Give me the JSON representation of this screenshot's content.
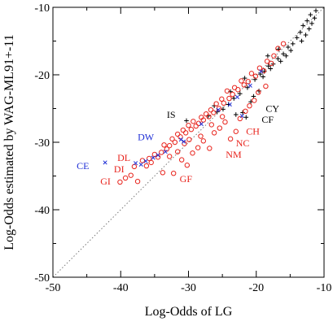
{
  "colors": {
    "black": "#000000",
    "red": "#e8231c",
    "blue": "#1f2fd6",
    "diag": "#7a7a7a"
  },
  "chart_data": {
    "type": "scatter",
    "title": "",
    "xlabel": "Log-Odds of LG",
    "ylabel": "Log-Odds estimated by WAG-ML91+-11",
    "xlim": [
      -50,
      -10
    ],
    "ylim": [
      -50,
      -10
    ],
    "x_ticks": [
      -50,
      -40,
      -30,
      -20,
      -10
    ],
    "y_ticks": [
      -50,
      -40,
      -30,
      -20,
      -10
    ],
    "x_tick_labels": [
      "-50",
      "-40",
      "-30",
      "-20",
      "-10"
    ],
    "y_tick_labels": [
      "-50",
      "-40",
      "-30",
      "-20",
      "-10"
    ],
    "grid": false,
    "legend": "none",
    "reference_line": {
      "style": "dotted",
      "from": [
        -50,
        -50
      ],
      "to": [
        -10,
        -10
      ]
    },
    "series": [
      {
        "marker": "plus",
        "color": "black",
        "points": [
          [
            -11.2,
            -10.5
          ],
          [
            -12.0,
            -11.1
          ],
          [
            -11.4,
            -11.6
          ],
          [
            -12.5,
            -12.0
          ],
          [
            -11.8,
            -12.4
          ],
          [
            -13.1,
            -12.7
          ],
          [
            -12.2,
            -13.2
          ],
          [
            -13.5,
            -13.7
          ],
          [
            -12.7,
            -14.1
          ],
          [
            -14.0,
            -14.5
          ],
          [
            -13.3,
            -15.0
          ],
          [
            -14.6,
            -15.4
          ],
          [
            -15.3,
            -15.9
          ],
          [
            -14.9,
            -16.4
          ],
          [
            -16.0,
            -16.9
          ],
          [
            -15.6,
            -17.2
          ],
          [
            -16.8,
            -17.6
          ],
          [
            -16.4,
            -18.0
          ],
          [
            -17.5,
            -18.4
          ],
          [
            -18.2,
            -18.7
          ],
          [
            -17.9,
            -19.1
          ],
          [
            -18.8,
            -19.5
          ],
          [
            -19.4,
            -19.9
          ],
          [
            -19.0,
            -20.3
          ],
          [
            -20.2,
            -20.7
          ],
          [
            -21.3,
            -21.9
          ],
          [
            -22.4,
            -22.8
          ],
          [
            -23.3,
            -23.5
          ],
          [
            -24.1,
            -24.4
          ],
          [
            -24.9,
            -25.1
          ],
          [
            -22.0,
            -25.6
          ],
          [
            -21.5,
            -26.3
          ],
          [
            -23.0,
            -25.9
          ],
          [
            -25.8,
            -25.5
          ],
          [
            -26.2,
            -24.6
          ],
          [
            -30.3,
            -26.8
          ],
          [
            -27.1,
            -26.1
          ],
          [
            -20.4,
            -23.2
          ],
          [
            -19.6,
            -22.4
          ],
          [
            -20.8,
            -24.0
          ],
          [
            -18.3,
            -17.2
          ],
          [
            -16.7,
            -16.2
          ],
          [
            -21.7,
            -20.5
          ],
          [
            -23.8,
            -22.5
          ]
        ]
      },
      {
        "marker": "circle",
        "color": "red",
        "points": [
          [
            -16.0,
            -15.4
          ],
          [
            -16.8,
            -16.1
          ],
          [
            -17.4,
            -17.2
          ],
          [
            -17.8,
            -18.3
          ],
          [
            -18.4,
            -18.0
          ],
          [
            -18.9,
            -19.4
          ],
          [
            -19.5,
            -19.0
          ],
          [
            -20.1,
            -20.2
          ],
          [
            -20.7,
            -19.8
          ],
          [
            -21.2,
            -21.0
          ],
          [
            -21.8,
            -21.5
          ],
          [
            -22.2,
            -20.9
          ],
          [
            -22.7,
            -22.2
          ],
          [
            -23.2,
            -21.9
          ],
          [
            -23.5,
            -22.9
          ],
          [
            -24.0,
            -23.5
          ],
          [
            -24.3,
            -22.4
          ],
          [
            -24.8,
            -24.2
          ],
          [
            -25.1,
            -23.6
          ],
          [
            -25.5,
            -25.0
          ],
          [
            -25.9,
            -24.3
          ],
          [
            -26.3,
            -25.6
          ],
          [
            -26.7,
            -25.2
          ],
          [
            -27.0,
            -26.2
          ],
          [
            -27.4,
            -25.8
          ],
          [
            -27.8,
            -26.7
          ],
          [
            -28.1,
            -26.3
          ],
          [
            -28.5,
            -27.2
          ],
          [
            -28.9,
            -27.6
          ],
          [
            -29.3,
            -26.9
          ],
          [
            -29.6,
            -28.1
          ],
          [
            -30.0,
            -27.5
          ],
          [
            -30.4,
            -28.6
          ],
          [
            -30.8,
            -28.2
          ],
          [
            -31.2,
            -29.2
          ],
          [
            -31.6,
            -28.8
          ],
          [
            -32.0,
            -30.0
          ],
          [
            -32.4,
            -29.5
          ],
          [
            -32.8,
            -30.5
          ],
          [
            -33.2,
            -31.0
          ],
          [
            -33.6,
            -30.4
          ],
          [
            -34.0,
            -31.5
          ],
          [
            -34.5,
            -32.2
          ],
          [
            -35.0,
            -31.8
          ],
          [
            -35.5,
            -33.0
          ],
          [
            -36.2,
            -33.5
          ],
          [
            -36.8,
            -32.7
          ],
          [
            -37.5,
            -35.8
          ],
          [
            -38.0,
            -33.6
          ],
          [
            -38.5,
            -34.9
          ],
          [
            -39.3,
            -35.3
          ],
          [
            -40.1,
            -35.9
          ],
          [
            -33.8,
            -34.5
          ],
          [
            -32.2,
            -34.6
          ],
          [
            -31.0,
            -32.6
          ],
          [
            -30.2,
            -33.4
          ],
          [
            -29.4,
            -31.6
          ],
          [
            -28.6,
            -30.8
          ],
          [
            -27.8,
            -29.8
          ],
          [
            -26.9,
            -30.9
          ],
          [
            -26.2,
            -28.6
          ],
          [
            -25.4,
            -27.9
          ],
          [
            -24.6,
            -27.0
          ],
          [
            -23.8,
            -29.5
          ],
          [
            -23.0,
            -28.4
          ],
          [
            -22.4,
            -26.5
          ],
          [
            -21.6,
            -25.4
          ],
          [
            -21.0,
            -24.6
          ],
          [
            -20.3,
            -23.8
          ],
          [
            -19.7,
            -22.6
          ],
          [
            -18.6,
            -21.7
          ],
          [
            -29.9,
            -29.6
          ],
          [
            -28.2,
            -29.1
          ],
          [
            -26.6,
            -27.4
          ],
          [
            -25.0,
            -26.2
          ],
          [
            -32.8,
            -32.1
          ],
          [
            -31.6,
            -31.4
          ],
          [
            -30.6,
            -30.2
          ],
          [
            -35.8,
            -32.4
          ]
        ]
      },
      {
        "marker": "x",
        "color": "blue",
        "points": [
          [
            -42.3,
            -33.0
          ],
          [
            -37.8,
            -33.1
          ],
          [
            -37.0,
            -33.3
          ],
          [
            -36.3,
            -32.8
          ],
          [
            -35.2,
            -32.3
          ],
          [
            -34.5,
            -31.9
          ],
          [
            -33.4,
            -31.4
          ],
          [
            -30.7,
            -29.9
          ],
          [
            -28.1,
            -27.3
          ],
          [
            -25.6,
            -25.2
          ],
          [
            -23.9,
            -24.4
          ],
          [
            -22.8,
            -23.3
          ],
          [
            -22.1,
            -26.1
          ],
          [
            -20.9,
            -21.6
          ],
          [
            -31.1,
            -29.6
          ],
          [
            -19.3,
            -19.5
          ]
        ]
      }
    ],
    "annotations": [
      {
        "text": "CY",
        "x": -18.6,
        "y": -25.0,
        "color": "black"
      },
      {
        "text": "CF",
        "x": -19.2,
        "y": -26.6,
        "color": "black"
      },
      {
        "text": "IS",
        "x": -33.2,
        "y": -25.9,
        "color": "black"
      },
      {
        "text": "CH",
        "x": -21.5,
        "y": -28.4,
        "color": "red"
      },
      {
        "text": "NC",
        "x": -23.0,
        "y": -30.1,
        "color": "red"
      },
      {
        "text": "NM",
        "x": -24.5,
        "y": -31.8,
        "color": "red"
      },
      {
        "text": "DW",
        "x": -37.5,
        "y": -29.2,
        "color": "blue"
      },
      {
        "text": "CE",
        "x": -46.5,
        "y": -33.5,
        "color": "blue"
      },
      {
        "text": "DL",
        "x": -40.5,
        "y": -32.3,
        "color": "red"
      },
      {
        "text": "DI",
        "x": -41.0,
        "y": -34.0,
        "color": "red"
      },
      {
        "text": "GI",
        "x": -43.0,
        "y": -35.8,
        "color": "red"
      },
      {
        "text": "GF",
        "x": -31.3,
        "y": -35.4,
        "color": "red"
      }
    ]
  }
}
